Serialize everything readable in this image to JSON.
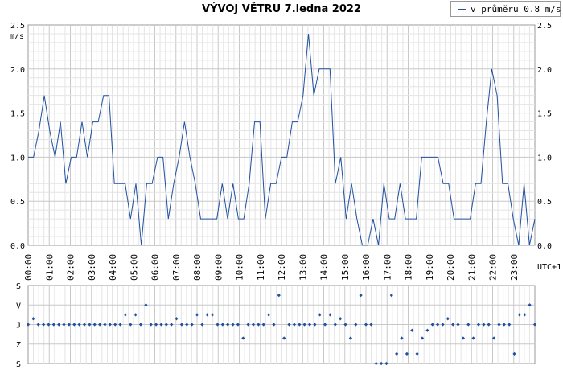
{
  "chart_data": [
    {
      "type": "line",
      "title": "VÝVOJ VĚTRU  7.ledna 2022",
      "ylabel": "m/s",
      "ylim": [
        0,
        2.5
      ],
      "yticks": [
        "0.0",
        "0.5",
        "1.0",
        "1.5",
        "2.0",
        "2.5"
      ],
      "xticks": [
        "00:00",
        "01:00",
        "02:00",
        "03:00",
        "04:00",
        "05:00",
        "06:00",
        "07:00",
        "08:00",
        "09:00",
        "10:00",
        "11:00",
        "12:00",
        "13:00",
        "14:00",
        "15:00",
        "16:00",
        "17:00",
        "18:00",
        "19:00",
        "20:00",
        "21:00",
        "22:00",
        "23:00"
      ],
      "x_unit_label": "UTC+1",
      "grid": true,
      "legend_position": "top-right",
      "series": [
        {
          "name": "v průměru 0.8 m/s",
          "color": "#2050a0",
          "values": [
            1.0,
            1.0,
            1.3,
            1.7,
            1.3,
            1.0,
            1.4,
            0.7,
            1.0,
            1.0,
            1.4,
            1.0,
            1.4,
            1.4,
            1.7,
            1.7,
            0.7,
            0.7,
            0.7,
            0.3,
            0.7,
            0.0,
            0.7,
            0.7,
            1.0,
            1.0,
            0.3,
            0.7,
            1.0,
            1.4,
            1.0,
            0.7,
            0.3,
            0.3,
            0.3,
            0.3,
            0.7,
            0.3,
            0.7,
            0.3,
            0.3,
            0.7,
            1.4,
            1.4,
            0.3,
            0.7,
            0.7,
            1.0,
            1.0,
            1.4,
            1.4,
            1.7,
            2.4,
            1.7,
            2.0,
            2.0,
            2.0,
            0.7,
            1.0,
            0.3,
            0.7,
            0.3,
            0.0,
            0.0,
            0.3,
            0.0,
            0.7,
            0.3,
            0.3,
            0.7,
            0.3,
            0.3,
            0.3,
            1.0,
            1.0,
            1.0,
            1.0,
            0.7,
            0.7,
            0.3,
            0.3,
            0.3,
            0.3,
            0.7,
            0.7,
            1.4,
            2.0,
            1.7,
            0.7,
            0.7,
            0.3,
            0.0,
            0.7,
            0.0,
            0.3
          ]
        }
      ]
    },
    {
      "type": "scatter",
      "title": "",
      "categories": [
        "S",
        "V",
        "J",
        "Z",
        "S"
      ],
      "color": "#2050a0",
      "values": [
        2,
        2.3,
        2,
        2,
        2,
        2,
        2,
        2,
        2,
        2,
        2,
        2,
        2,
        2,
        2,
        2,
        2,
        2,
        2,
        2.5,
        2,
        2.5,
        2,
        3,
        2,
        2,
        2,
        2,
        2,
        2.3,
        2,
        2,
        2,
        2.5,
        2,
        2.5,
        2.5,
        2,
        2,
        2,
        2,
        2,
        1.3,
        2,
        2,
        2,
        2,
        2.5,
        2,
        3.5,
        1.3,
        2,
        2,
        2,
        2,
        2,
        2,
        2.5,
        2,
        2.5,
        2,
        2.3,
        2,
        1.3,
        2,
        3.5,
        2,
        2,
        0,
        0,
        0,
        3.5,
        0.5,
        1.3,
        0.5,
        1.7,
        0.5,
        1.3,
        1.7,
        2,
        2,
        2,
        2.3,
        2,
        2,
        1.3,
        2,
        1.3,
        2,
        2,
        2,
        1.3,
        2,
        2,
        2,
        0.5,
        2.5,
        2.5,
        3,
        2
      ]
    }
  ]
}
